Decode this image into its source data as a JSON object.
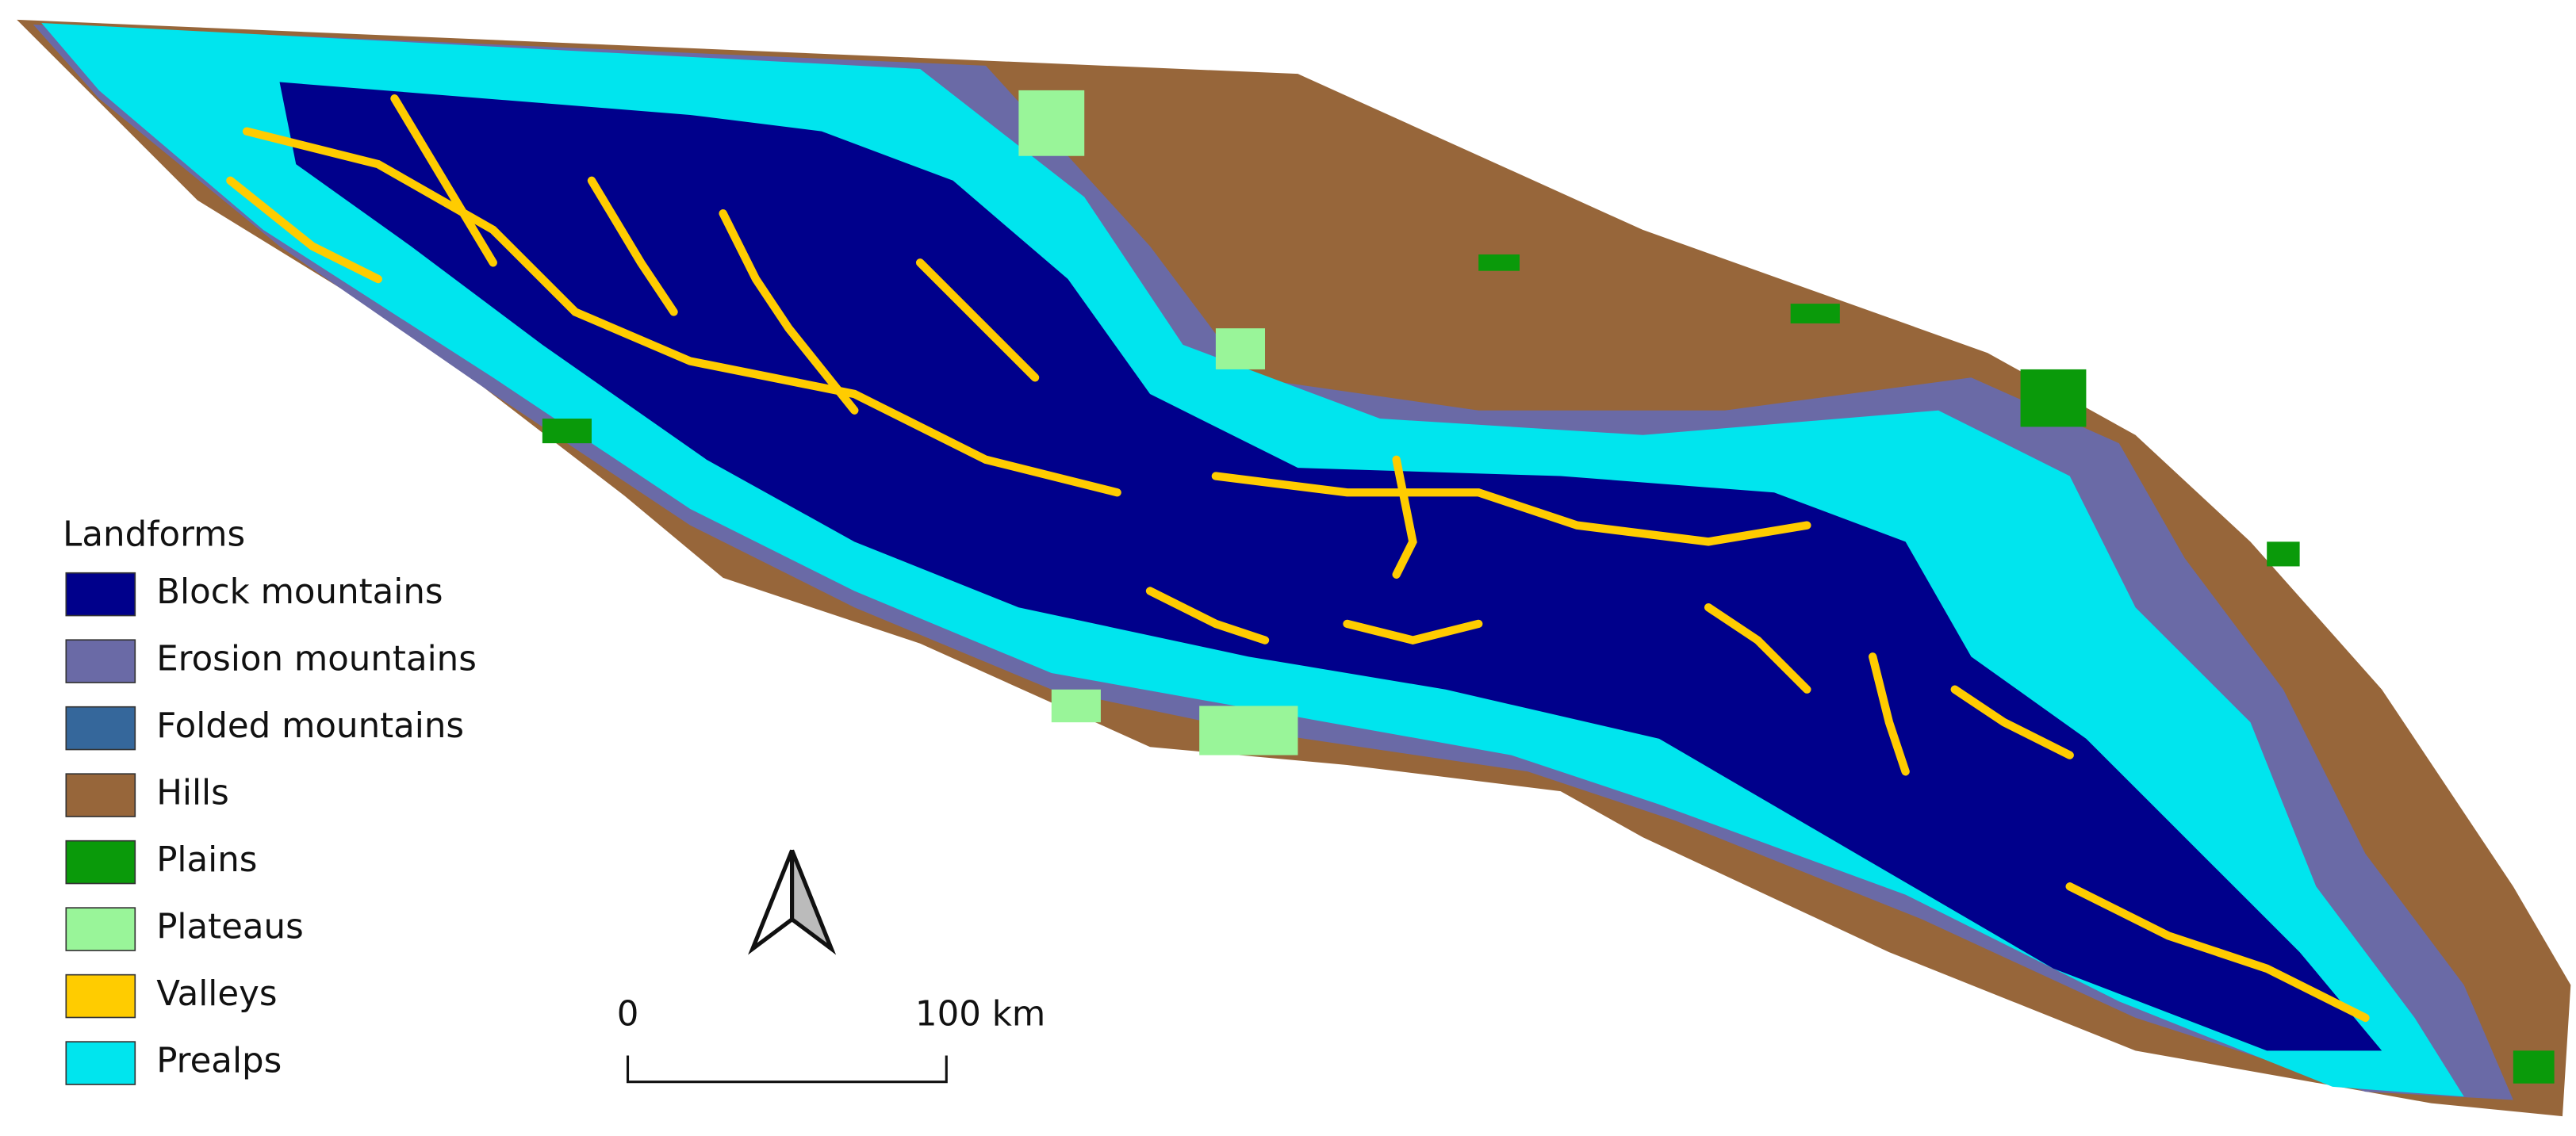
{
  "legend": {
    "title": "Landforms",
    "items": [
      {
        "label": "Block mountains",
        "color": "#00008b"
      },
      {
        "label": "Erosion mountains",
        "color": "#6a6aa6"
      },
      {
        "label": "Folded mountains",
        "color": "#35679b"
      },
      {
        "label": "Hills",
        "color": "#97663a"
      },
      {
        "label": "Plains",
        "color": "#0a9a0a"
      },
      {
        "label": "Plateaus",
        "color": "#99f599"
      },
      {
        "label": "Valleys",
        "color": "#ffcc00"
      },
      {
        "label": "Prealps",
        "color": "#00e5ee"
      }
    ]
  },
  "scale_bar": {
    "start_label": "0",
    "end_label": "100 km"
  }
}
